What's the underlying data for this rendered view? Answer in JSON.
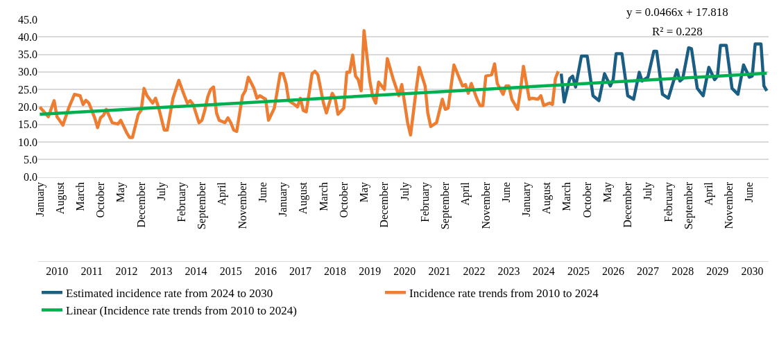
{
  "chart_data": {
    "type": "line",
    "xlim": [
      "2009-12-15",
      "2030-12-20"
    ],
    "xticks": [
      {
        "value": "2010-01",
        "label": "January"
      },
      {
        "value": "2010-08",
        "label": "August"
      },
      {
        "value": "2011-03",
        "label": "March"
      },
      {
        "value": "2011-10",
        "label": "October"
      },
      {
        "value": "2012-05",
        "label": "May"
      },
      {
        "value": "2012-12",
        "label": "December"
      },
      {
        "value": "2013-07",
        "label": "July"
      },
      {
        "value": "2014-02",
        "label": "February"
      },
      {
        "value": "2014-09",
        "label": "September"
      },
      {
        "value": "2015-04",
        "label": "April"
      },
      {
        "value": "2015-11",
        "label": "November"
      },
      {
        "value": "2016-06",
        "label": "June"
      },
      {
        "value": "2017-01",
        "label": "January"
      },
      {
        "value": "2017-08",
        "label": "August"
      },
      {
        "value": "2018-03",
        "label": "March"
      },
      {
        "value": "2018-10",
        "label": "October"
      },
      {
        "value": "2019-05",
        "label": "May"
      },
      {
        "value": "2019-12",
        "label": "December"
      },
      {
        "value": "2020-07",
        "label": "July"
      },
      {
        "value": "2021-02",
        "label": "February"
      },
      {
        "value": "2021-09",
        "label": "September"
      },
      {
        "value": "2022-04",
        "label": "April"
      },
      {
        "value": "2022-11",
        "label": "November"
      },
      {
        "value": "2023-06",
        "label": "June"
      },
      {
        "value": "2024-01",
        "label": "January"
      },
      {
        "value": "2024-08",
        "label": "August"
      },
      {
        "value": "2025-03",
        "label": "March"
      },
      {
        "value": "2025-10",
        "label": "October"
      },
      {
        "value": "2026-05",
        "label": "May"
      },
      {
        "value": "2026-12",
        "label": "December"
      },
      {
        "value": "2027-07",
        "label": "July"
      },
      {
        "value": "2028-02",
        "label": "February"
      },
      {
        "value": "2028-09",
        "label": "September"
      },
      {
        "value": "2029-04",
        "label": "April"
      },
      {
        "value": "2029-11",
        "label": "November"
      },
      {
        "value": "2030-06",
        "label": "June"
      }
    ],
    "x2lim": [
      "2009-12-15",
      "2030-12-20"
    ],
    "x2ticks": [
      {
        "value": "2010-07",
        "label": "2010"
      },
      {
        "value": "2011-07",
        "label": "2011"
      },
      {
        "value": "2012-07",
        "label": "2012"
      },
      {
        "value": "2013-07",
        "label": "2013"
      },
      {
        "value": "2014-07",
        "label": "2014"
      },
      {
        "value": "2015-07",
        "label": "2015"
      },
      {
        "value": "2016-07",
        "label": "2016"
      },
      {
        "value": "2017-07",
        "label": "2017"
      },
      {
        "value": "2018-07",
        "label": "2018"
      },
      {
        "value": "2019-07",
        "label": "2019"
      },
      {
        "value": "2020-07",
        "label": "2020"
      },
      {
        "value": "2021-07",
        "label": "2021"
      },
      {
        "value": "2022-07",
        "label": "2022"
      },
      {
        "value": "2023-07",
        "label": "2023"
      },
      {
        "value": "2024-07",
        "label": "2024"
      },
      {
        "value": "2025-07",
        "label": "2025"
      },
      {
        "value": "2026-07",
        "label": "2026"
      },
      {
        "value": "2027-07",
        "label": "2027"
      },
      {
        "value": "2028-07",
        "label": "2028"
      },
      {
        "value": "2029-07",
        "label": "2029"
      },
      {
        "value": "2030-07",
        "label": "2030"
      }
    ],
    "ylim": [
      0,
      45
    ],
    "yticks": [
      {
        "value": 0,
        "label": "0.0"
      },
      {
        "value": 5,
        "label": "5.0"
      },
      {
        "value": 10,
        "label": "10.0"
      },
      {
        "value": 15,
        "label": "15.0"
      },
      {
        "value": 20,
        "label": "20.0"
      },
      {
        "value": 25,
        "label": "25.0"
      },
      {
        "value": 30,
        "label": "30.0"
      },
      {
        "value": 35,
        "label": "35.0"
      },
      {
        "value": 40,
        "label": "40.0"
      },
      {
        "value": 45,
        "label": "45.0"
      }
    ],
    "grid": "y",
    "legend": "bottom",
    "annotations": [
      "y = 0.0466x + 17.818",
      "R² = 0.228"
    ],
    "series": [
      {
        "name": "Estimated incidence rate from 2024 to 2030",
        "color": "#1b5e84",
        "x": [
          "2025-01",
          "2025-02",
          "2025-04",
          "2025-05",
          "2025-06",
          "2025-08",
          "2025-10",
          "2025-12",
          "2026-02",
          "2026-04",
          "2026-06",
          "2026-07",
          "2026-08",
          "2026-10",
          "2026-12",
          "2027-02",
          "2027-04",
          "2027-05",
          "2027-07",
          "2027-09",
          "2027-10",
          "2027-12",
          "2028-02",
          "2028-05",
          "2028-06",
          "2028-07",
          "2028-09",
          "2028-10",
          "2028-12",
          "2029-02",
          "2029-04",
          "2029-06",
          "2029-07",
          "2029-08",
          "2029-10",
          "2029-12",
          "2030-02",
          "2030-04",
          "2030-06",
          "2030-07",
          "2030-08",
          "2030-10",
          "2030-11",
          "2030-12"
        ],
        "values": [
          29.5,
          21.4,
          28.1,
          28.8,
          25.7,
          34.5,
          34.5,
          23.2,
          21.8,
          29.5,
          26.0,
          27.8,
          35.2,
          35.2,
          23.2,
          22.2,
          29.9,
          27.4,
          28.5,
          35.9,
          35.9,
          23.6,
          22.5,
          30.6,
          27.4,
          28.1,
          36.9,
          36.6,
          25.3,
          23.2,
          31.3,
          27.8,
          28.8,
          37.6,
          37.6,
          25.3,
          23.6,
          32.0,
          28.5,
          28.8,
          38.0,
          38.0,
          26.0,
          24.6
        ]
      },
      {
        "name": "Incidence rate trends from 2010 to 2024",
        "color": "#ed7d31",
        "x": [
          "2010-01",
          "2010-04",
          "2010-06",
          "2010-07",
          "2010-09",
          "2010-11",
          "2011-01",
          "2011-03",
          "2011-04",
          "2011-05",
          "2011-06",
          "2011-08",
          "2011-09",
          "2011-10",
          "2011-11",
          "2011-12",
          "2012-02",
          "2012-04",
          "2012-05",
          "2012-07",
          "2012-08",
          "2012-09",
          "2012-11",
          "2012-12",
          "2013-01",
          "2013-02",
          "2013-04",
          "2013-05",
          "2013-06",
          "2013-08",
          "2013-09",
          "2013-11",
          "2014-01",
          "2014-03",
          "2014-04",
          "2014-05",
          "2014-06",
          "2014-08",
          "2014-09",
          "2014-10",
          "2014-11",
          "2014-12",
          "2015-01",
          "2015-02",
          "2015-03",
          "2015-05",
          "2015-06",
          "2015-07",
          "2015-08",
          "2015-09",
          "2015-11",
          "2015-12",
          "2016-01",
          "2016-03",
          "2016-04",
          "2016-05",
          "2016-07",
          "2016-08",
          "2016-10",
          "2016-12",
          "2017-01",
          "2017-02",
          "2017-03",
          "2017-05",
          "2017-06",
          "2017-07",
          "2017-08",
          "2017-09",
          "2017-11",
          "2017-12",
          "2018-01",
          "2018-03",
          "2018-04",
          "2018-06",
          "2018-07",
          "2018-08",
          "2018-10",
          "2018-11",
          "2018-12",
          "2019-01",
          "2019-02",
          "2019-03",
          "2019-04",
          "2019-05",
          "2019-07",
          "2019-08",
          "2019-09",
          "2019-10",
          "2019-12",
          "2020-01",
          "2020-03",
          "2020-05",
          "2020-06",
          "2020-08",
          "2020-09",
          "2020-11",
          "2020-12",
          "2021-02",
          "2021-03",
          "2021-04",
          "2021-06",
          "2021-08",
          "2021-09",
          "2021-10",
          "2021-12",
          "2022-03",
          "2022-04",
          "2022-05",
          "2022-06",
          "2022-08",
          "2022-09",
          "2022-10",
          "2022-11",
          "2023-01",
          "2023-02",
          "2023-03",
          "2023-05",
          "2023-06",
          "2023-07",
          "2023-08",
          "2023-10",
          "2023-11",
          "2023-12",
          "2024-02",
          "2024-03",
          "2024-05",
          "2024-06",
          "2024-07",
          "2024-09",
          "2024-10",
          "2024-11",
          "2024-12"
        ],
        "values": [
          20.0,
          17.2,
          21.8,
          17.2,
          14.8,
          19.7,
          23.6,
          23.2,
          20.7,
          21.9,
          21.1,
          16.9,
          14.1,
          16.9,
          17.6,
          19.3,
          15.5,
          15.1,
          16.2,
          12.7,
          11.3,
          11.3,
          17.9,
          19.0,
          25.3,
          23.2,
          21.1,
          22.5,
          20.0,
          13.4,
          13.4,
          22.5,
          27.6,
          23.2,
          21.1,
          21.8,
          20.7,
          15.5,
          16.2,
          19.0,
          22.9,
          25.0,
          25.7,
          18.3,
          16.2,
          15.5,
          16.9,
          15.5,
          13.4,
          13.0,
          23.2,
          24.6,
          28.5,
          25.3,
          22.5,
          23.2,
          22.2,
          16.2,
          19.7,
          29.5,
          29.5,
          26.7,
          21.8,
          20.7,
          20.0,
          22.5,
          19.0,
          18.6,
          29.5,
          30.2,
          29.2,
          21.1,
          18.3,
          23.9,
          22.5,
          17.9,
          19.7,
          29.9,
          29.9,
          34.8,
          28.8,
          27.8,
          24.6,
          41.8,
          27.4,
          22.9,
          21.1,
          27.1,
          25.0,
          33.8,
          28.1,
          23.2,
          26.4,
          15.5,
          12.0,
          25.3,
          31.3,
          26.0,
          18.3,
          14.4,
          15.5,
          22.2,
          19.3,
          19.7,
          32.0,
          26.0,
          26.4,
          23.9,
          26.7,
          22.2,
          20.4,
          20.4,
          28.8,
          29.2,
          32.3,
          26.7,
          23.6,
          26.0,
          26.0,
          22.2,
          19.3,
          25.0,
          31.6,
          22.2,
          22.5,
          22.2,
          23.2,
          20.4,
          21.1,
          20.7,
          28.1,
          30.2
        ]
      },
      {
        "name": "Linear (Incidence rate trends from 2010 to 2024)",
        "color": "#00b050",
        "x": [
          "2010-01",
          "2030-12"
        ],
        "values": [
          17.9,
          29.6
        ]
      }
    ]
  }
}
